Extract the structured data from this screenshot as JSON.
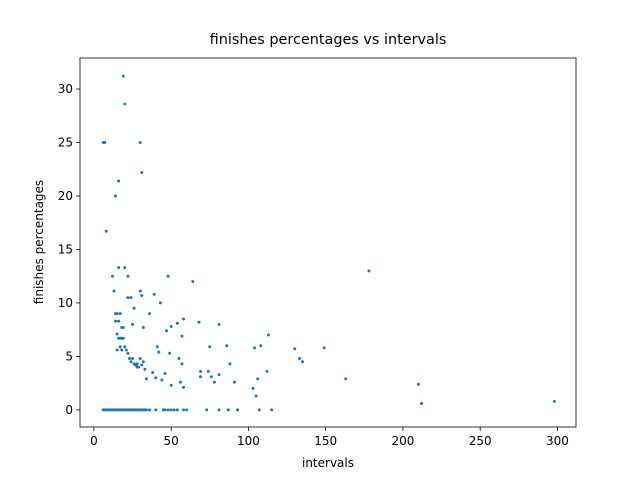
{
  "chart_data": {
    "type": "scatter",
    "title": "finishes percentages vs intervals",
    "x_label": "intervals",
    "y_label": "finishes percentages",
    "color": "#1f77b4",
    "x": [
      6,
      7,
      8,
      12,
      13,
      14,
      16,
      19,
      20,
      30,
      31,
      16,
      20,
      22,
      14,
      15,
      16,
      17,
      18,
      19,
      14,
      15,
      16,
      17,
      18,
      19,
      15,
      17,
      18,
      20,
      21,
      22,
      23,
      24,
      25,
      26,
      27,
      28,
      29,
      30,
      31,
      32,
      33,
      34,
      22,
      24,
      25,
      26,
      28,
      30,
      31,
      32,
      36,
      38,
      39,
      40,
      41,
      42,
      43,
      44,
      46,
      47,
      48,
      49,
      50,
      50,
      54,
      55,
      56,
      57,
      58,
      58,
      57,
      64,
      68,
      69,
      69,
      74,
      75,
      76,
      78,
      81,
      81,
      86,
      88,
      91,
      103,
      104,
      105,
      106,
      108,
      112,
      113,
      130,
      133,
      135,
      149,
      163,
      178,
      210,
      212,
      298,
      6,
      7,
      8,
      9,
      10,
      11,
      12,
      13,
      14,
      15,
      16,
      17,
      18,
      19,
      20,
      21,
      22,
      23,
      24,
      25,
      26,
      27,
      28,
      29,
      30,
      31,
      32,
      33,
      34,
      36,
      40,
      45,
      46,
      48,
      50,
      52,
      54,
      58,
      60,
      73,
      81,
      87,
      93,
      107,
      115
    ],
    "values": [
      25,
      25,
      16.7,
      12.5,
      11.1,
      20,
      21.4,
      31.2,
      28.6,
      25,
      22.2,
      13.3,
      13.3,
      12.5,
      9,
      9,
      8.3,
      9,
      7.7,
      7.7,
      8.3,
      7.1,
      6.7,
      6.7,
      6.7,
      6.7,
      5.6,
      5.9,
      5.6,
      5.9,
      5.6,
      5.3,
      4.8,
      4.5,
      4.8,
      4.3,
      4.2,
      4,
      4,
      4.8,
      4.2,
      4.5,
      3.8,
      2.9,
      10.5,
      10.5,
      8,
      9.5,
      4.3,
      11.1,
      10.7,
      7.7,
      9,
      3.5,
      10.8,
      3,
      5.9,
      5.4,
      10,
      2.8,
      3.4,
      7.4,
      12.5,
      5.3,
      7.8,
      2.3,
      8.1,
      4.8,
      2.6,
      4.3,
      8.5,
      2.1,
      6.9,
      12,
      8.2,
      3.6,
      3.1,
      3.6,
      5.9,
      3.1,
      2.6,
      8,
      3.3,
      6,
      4.3,
      2.6,
      2,
      5.8,
      1.3,
      2.9,
      6,
      3.6,
      7,
      5.7,
      4.8,
      4.5,
      5.8,
      2.9,
      13,
      2.4,
      0.6,
      0.8,
      0,
      0,
      0,
      0,
      0,
      0,
      0,
      0,
      0,
      0,
      0,
      0,
      0,
      0,
      0,
      0,
      0,
      0,
      0,
      0,
      0,
      0,
      0,
      0,
      0,
      0,
      0,
      0,
      0,
      0,
      0,
      0,
      0,
      0,
      0,
      0,
      0,
      0,
      0,
      0,
      0,
      0,
      0,
      0,
      0
    ],
    "xlim": [
      -9,
      312
    ],
    "ylim": [
      -1.6,
      32.9
    ],
    "xticks": [
      0,
      50,
      100,
      150,
      200,
      250,
      300
    ],
    "yticks": [
      0,
      5,
      10,
      15,
      20,
      25,
      30
    ]
  }
}
